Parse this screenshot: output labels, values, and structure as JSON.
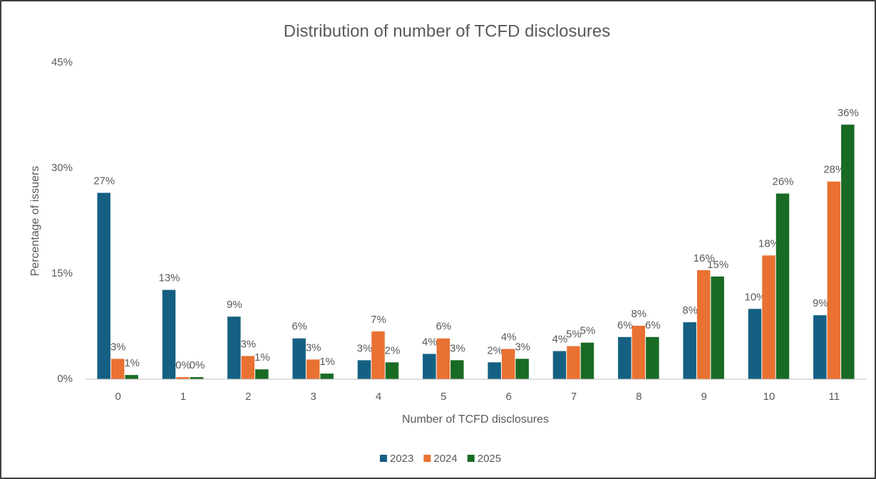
{
  "chart_data": {
    "type": "bar",
    "title": "Distribution of number of TCFD disclosures",
    "x_label": "Number of TCFD disclosures",
    "y_label": "Percentage of issuers",
    "categories": [
      "0",
      "1",
      "2",
      "3",
      "4",
      "5",
      "6",
      "7",
      "8",
      "9",
      "10",
      "11"
    ],
    "ylim": [
      0,
      45
    ],
    "yticks": [
      {
        "value": 0,
        "label": "0%"
      },
      {
        "value": 15,
        "label": "15%"
      },
      {
        "value": 30,
        "label": "30%"
      },
      {
        "value": 45,
        "label": "45%"
      }
    ],
    "grid": false,
    "legend": "bottom",
    "series": [
      {
        "name": "2023",
        "color": "#156082",
        "values": [
          26.5,
          12.7,
          8.9,
          5.8,
          2.7,
          3.6,
          2.4,
          4.0,
          6.0,
          8.1,
          10.0,
          9.1
        ],
        "value_labels": [
          "27%",
          "13%",
          "9%",
          "6%",
          "3%",
          "4%",
          "2%",
          "4%",
          "6%",
          "8%",
          "10%",
          "9%"
        ]
      },
      {
        "name": "2024",
        "color": "#e97132",
        "values": [
          2.9,
          0.3,
          3.3,
          2.8,
          6.8,
          5.8,
          4.3,
          4.7,
          7.6,
          15.5,
          17.6,
          28.1
        ],
        "value_labels": [
          "3%",
          "0%",
          "3%",
          "3%",
          "7%",
          "6%",
          "4%",
          "5%",
          "8%",
          "16%",
          "18%",
          "28%"
        ]
      },
      {
        "name": "2025",
        "color": "#196b24",
        "values": [
          0.6,
          0.3,
          1.4,
          0.8,
          2.4,
          2.7,
          2.9,
          5.2,
          6.0,
          14.6,
          26.4,
          36.2
        ],
        "value_labels": [
          "1%",
          "0%",
          "1%",
          "1%",
          "2%",
          "3%",
          "3%",
          "5%",
          "6%",
          "15%",
          "26%",
          "36%"
        ]
      }
    ]
  }
}
